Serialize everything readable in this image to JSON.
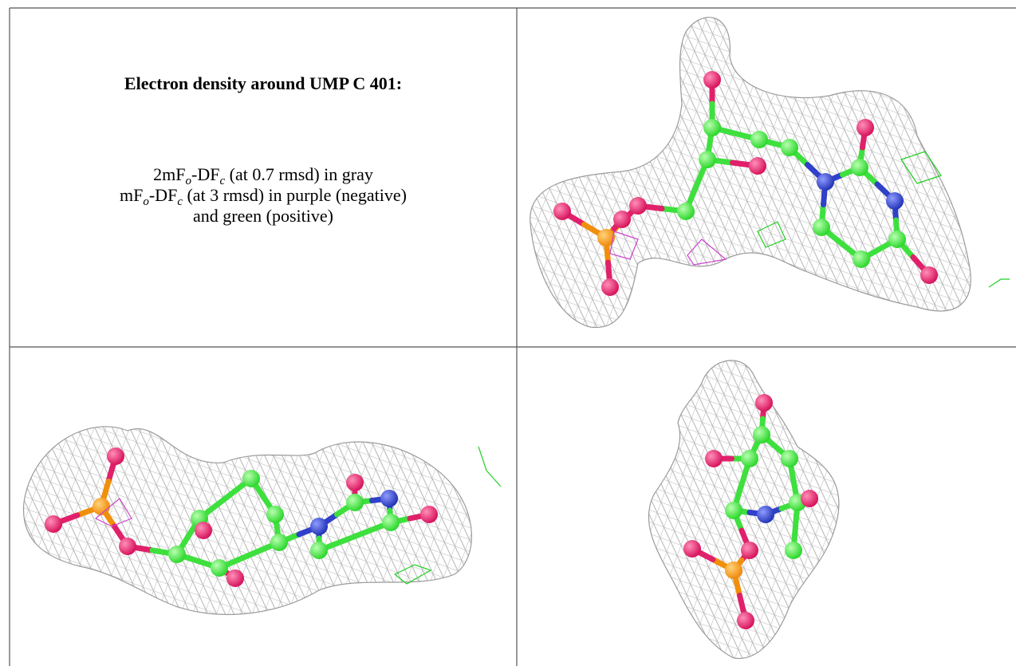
{
  "header": {
    "title": "Electron density around UMP C 401:"
  },
  "legend": {
    "lines": [
      [
        "2mF",
        "o",
        "-DF",
        "c",
        " (at 0.7 rmsd) in gray"
      ],
      [
        "mF",
        "o",
        "-DF",
        "c",
        " (at 3 rmsd) in purple (negative)"
      ],
      [
        "and green (positive)"
      ]
    ]
  }
}
